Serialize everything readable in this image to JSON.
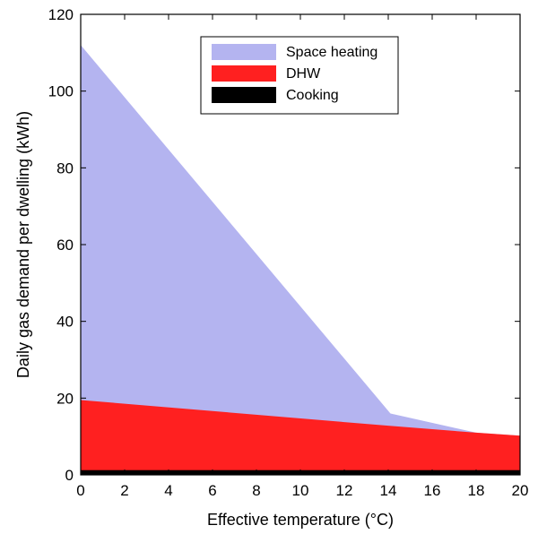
{
  "chart_data": {
    "type": "area",
    "title": "",
    "xlabel": "Effective temperature (°C)",
    "ylabel": "Daily gas demand per dwelling (kWh)",
    "xlim": [
      0,
      20
    ],
    "ylim": [
      0,
      120
    ],
    "xticks": [
      0,
      2,
      4,
      6,
      8,
      10,
      12,
      14,
      16,
      18,
      20
    ],
    "yticks": [
      0,
      20,
      40,
      60,
      80,
      100,
      120
    ],
    "grid": false,
    "legend_position": "top-right",
    "stacked": true,
    "series": [
      {
        "name": "Cooking",
        "color": "#000000",
        "points": [
          [
            0,
            1
          ],
          [
            20,
            1
          ]
        ]
      },
      {
        "name": "DHW",
        "color": "#ff2020",
        "points": [
          [
            0,
            19.5
          ],
          [
            14,
            12.8
          ],
          [
            18,
            11
          ],
          [
            20,
            10.2
          ]
        ]
      },
      {
        "name": "Space heating",
        "color": "#b4b4f0",
        "points": [
          [
            0,
            112
          ],
          [
            14.1,
            16
          ],
          [
            18,
            11
          ],
          [
            20,
            10.2
          ]
        ]
      }
    ],
    "legend_order": [
      "Space heating",
      "DHW",
      "Cooking"
    ]
  }
}
